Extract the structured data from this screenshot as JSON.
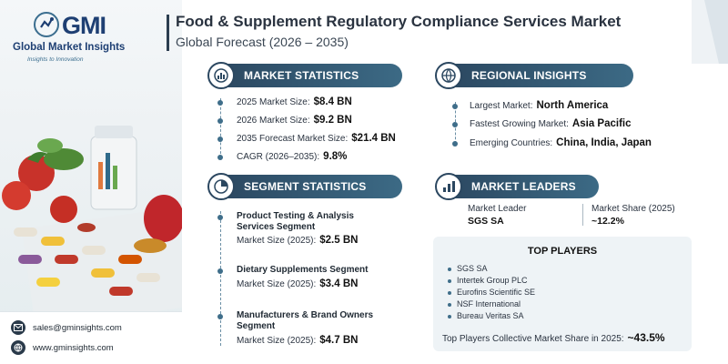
{
  "brand": {
    "logo_text": "GMI",
    "name": "Global Market Insights",
    "tagline": "Insights to Innovation"
  },
  "header": {
    "title": "Food & Supplement Regulatory Compliance Services Market",
    "subtitle": "Global Forecast (2026 – 2035)"
  },
  "market_statistics": {
    "heading": "MARKET STATISTICS",
    "icon": "globe-bars-icon",
    "items": [
      {
        "label": "2025 Market Size:",
        "value": "$8.4 BN"
      },
      {
        "label": "2026 Market Size:",
        "value": "$9.2 BN"
      },
      {
        "label": "2035 Forecast Market Size:",
        "value": "$21.4 BN"
      },
      {
        "label": "CAGR (2026–2035):",
        "value": "9.8%"
      }
    ]
  },
  "regional_insights": {
    "heading": "REGIONAL INSIGHTS",
    "icon": "globe-icon",
    "items": [
      {
        "label": "Largest Market:",
        "value": "North America"
      },
      {
        "label": "Fastest Growing Market:",
        "value": "Asia Pacific"
      },
      {
        "label": "Emerging Countries:",
        "value": "China, India, Japan"
      }
    ]
  },
  "segment_statistics": {
    "heading": "SEGMENT STATISTICS",
    "icon": "pie-chart-icon",
    "items": [
      {
        "title": "Product Testing & Analysis Services Segment",
        "label": "Market Size (2025):",
        "value": "$2.5 BN"
      },
      {
        "title": "Dietary Supplements Segment",
        "label": "Market Size (2025):",
        "value": "$3.4 BN"
      },
      {
        "title": "Manufacturers & Brand Owners Segment",
        "label": "Market Size (2025):",
        "value": "$4.7 BN"
      }
    ]
  },
  "market_leaders": {
    "heading": "MARKET LEADERS",
    "icon": "leader-chart-icon",
    "leader_label": "Market Leader",
    "leader_value": "SGS SA",
    "share_label": "Market Share (2025)",
    "share_value": "~12.2%"
  },
  "top_players": {
    "heading": "TOP PLAYERS",
    "items": [
      "SGS SA",
      "Intertek Group PLC",
      "Eurofins Scientific SE",
      "NSF International",
      "Bureau Veritas SA"
    ],
    "share_label": "Top Players Collective Market Share in 2025:",
    "share_value": "~43.5%"
  },
  "contacts": {
    "email": "sales@gminsights.com",
    "website": "www.gminsights.com"
  },
  "colors": {
    "header_pill": "#2b4760",
    "accent": "#3f6e8a",
    "brand": "#1e3f73"
  }
}
